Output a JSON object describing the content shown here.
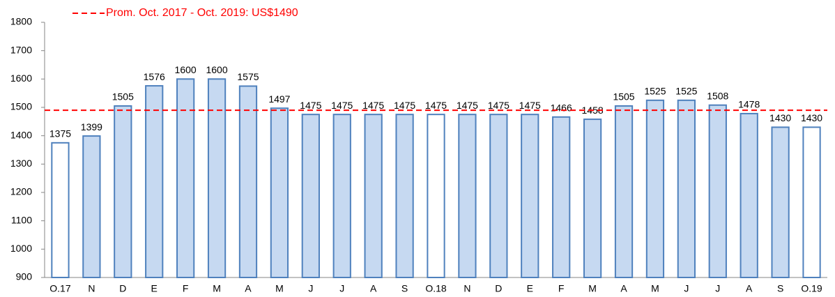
{
  "chart_data": {
    "type": "bar",
    "categories": [
      "O.17",
      "N",
      "D",
      "E",
      "F",
      "M",
      "A",
      "M",
      "J",
      "J",
      "A",
      "S",
      "O.18",
      "N",
      "D",
      "E",
      "F",
      "M",
      "A",
      "M",
      "J",
      "J",
      "A",
      "S",
      "O.19"
    ],
    "values": [
      1375,
      1399,
      1505,
      1576,
      1600,
      1600,
      1575,
      1497,
      1475,
      1475,
      1475,
      1475,
      1475,
      1475,
      1475,
      1475,
      1466,
      1458,
      1505,
      1525,
      1525,
      1508,
      1478,
      1430,
      1430
    ],
    "colors": [
      "#ffffff",
      "#c6d9f1",
      "#c6d9f1",
      "#c6d9f1",
      "#c6d9f1",
      "#c6d9f1",
      "#c6d9f1",
      "#c6d9f1",
      "#c6d9f1",
      "#c6d9f1",
      "#c6d9f1",
      "#c6d9f1",
      "#ffffff",
      "#c6d9f1",
      "#c6d9f1",
      "#c6d9f1",
      "#c6d9f1",
      "#c6d9f1",
      "#c6d9f1",
      "#c6d9f1",
      "#c6d9f1",
      "#c6d9f1",
      "#c6d9f1",
      "#c6d9f1",
      "#ffffff"
    ],
    "edgecolor": "#4f81bd",
    "ylim": [
      900,
      1800
    ],
    "yticks": [
      900,
      1000,
      1100,
      1200,
      1300,
      1400,
      1500,
      1600,
      1700,
      1800
    ],
    "reference_line": {
      "value": 1490,
      "label": "Prom. Oct. 2017 - Oct. 2019: US$1490",
      "color": "#ff0000"
    },
    "legend_position": "top-left"
  }
}
